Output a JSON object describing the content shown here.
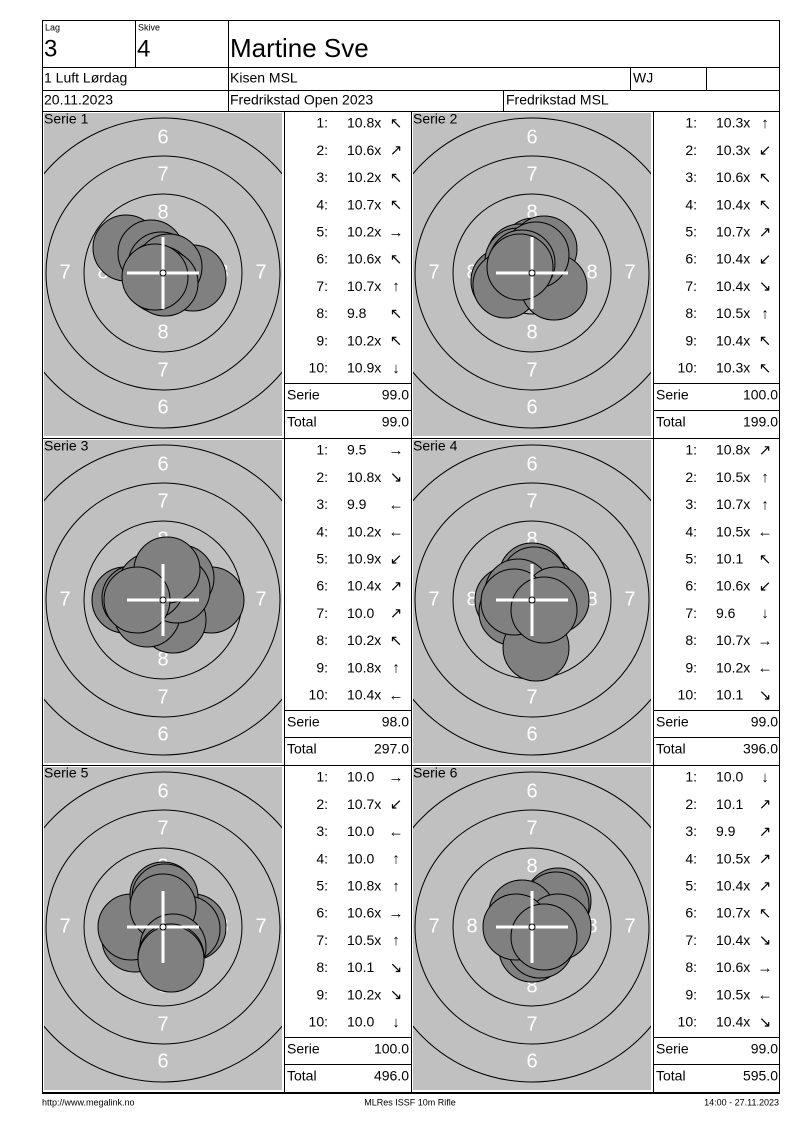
{
  "header": {
    "lag_label": "Lag",
    "lag": "3",
    "skive_label": "Skive",
    "skive": "4",
    "name": "Martine Sve",
    "event": "1 Luft Lørdag",
    "club": "Kisen MSL",
    "class": "WJ",
    "date": "20.11.2023",
    "competition": "Fredrikstad Open 2023",
    "organizer": "Fredrikstad MSL"
  },
  "target": {
    "ring_numbers": [
      "6",
      "7",
      "8"
    ]
  },
  "summary_labels": {
    "serie": "Serie",
    "total": "Total"
  },
  "series": [
    {
      "title": "Serie 1",
      "shots": [
        {
          "n": "1:",
          "score": "10.8x",
          "dir": "↖"
        },
        {
          "n": "2:",
          "score": "10.6x",
          "dir": "↗"
        },
        {
          "n": "3:",
          "score": "10.2x",
          "dir": "↖"
        },
        {
          "n": "4:",
          "score": "10.7x",
          "dir": "↖"
        },
        {
          "n": "5:",
          "score": "10.2x",
          "dir": "→"
        },
        {
          "n": "6:",
          "score": "10.6x",
          "dir": "↖"
        },
        {
          "n": "7:",
          "score": "10.7x",
          "dir": "↑"
        },
        {
          "n": "8:",
          "score": "9.8",
          "dir": "↖"
        },
        {
          "n": "9:",
          "score": "10.2x",
          "dir": "↖"
        },
        {
          "n": "10:",
          "score": "10.9x",
          "dir": "↓"
        }
      ],
      "serie": "99.0",
      "total": "99.0"
    },
    {
      "title": "Serie 2",
      "shots": [
        {
          "n": "1:",
          "score": "10.3x",
          "dir": "↑"
        },
        {
          "n": "2:",
          "score": "10.3x",
          "dir": "↙"
        },
        {
          "n": "3:",
          "score": "10.6x",
          "dir": "↖"
        },
        {
          "n": "4:",
          "score": "10.4x",
          "dir": "↖"
        },
        {
          "n": "5:",
          "score": "10.7x",
          "dir": "↗"
        },
        {
          "n": "6:",
          "score": "10.4x",
          "dir": "↙"
        },
        {
          "n": "7:",
          "score": "10.4x",
          "dir": "↘"
        },
        {
          "n": "8:",
          "score": "10.5x",
          "dir": "↑"
        },
        {
          "n": "9:",
          "score": "10.4x",
          "dir": "↖"
        },
        {
          "n": "10:",
          "score": "10.3x",
          "dir": "↖"
        }
      ],
      "serie": "100.0",
      "total": "199.0"
    },
    {
      "title": "Serie 3",
      "shots": [
        {
          "n": "1:",
          "score": "9.5",
          "dir": "→"
        },
        {
          "n": "2:",
          "score": "10.8x",
          "dir": "↘"
        },
        {
          "n": "3:",
          "score": "9.9",
          "dir": "←"
        },
        {
          "n": "4:",
          "score": "10.2x",
          "dir": "←"
        },
        {
          "n": "5:",
          "score": "10.9x",
          "dir": "↙"
        },
        {
          "n": "6:",
          "score": "10.4x",
          "dir": "↗"
        },
        {
          "n": "7:",
          "score": "10.0",
          "dir": "↗"
        },
        {
          "n": "8:",
          "score": "10.2x",
          "dir": "↖"
        },
        {
          "n": "9:",
          "score": "10.8x",
          "dir": "↑"
        },
        {
          "n": "10:",
          "score": "10.4x",
          "dir": "←"
        }
      ],
      "serie": "98.0",
      "total": "297.0"
    },
    {
      "title": "Serie 4",
      "shots": [
        {
          "n": "1:",
          "score": "10.8x",
          "dir": "↗"
        },
        {
          "n": "2:",
          "score": "10.5x",
          "dir": "↑"
        },
        {
          "n": "3:",
          "score": "10.7x",
          "dir": "↑"
        },
        {
          "n": "4:",
          "score": "10.5x",
          "dir": "←"
        },
        {
          "n": "5:",
          "score": "10.1",
          "dir": "↖"
        },
        {
          "n": "6:",
          "score": "10.6x",
          "dir": "↙"
        },
        {
          "n": "7:",
          "score": "9.6",
          "dir": "↓"
        },
        {
          "n": "8:",
          "score": "10.7x",
          "dir": "→"
        },
        {
          "n": "9:",
          "score": "10.2x",
          "dir": "←"
        },
        {
          "n": "10:",
          "score": "10.1",
          "dir": "↘"
        }
      ],
      "serie": "99.0",
      "total": "396.0"
    },
    {
      "title": "Serie 5",
      "shots": [
        {
          "n": "1:",
          "score": "10.0",
          "dir": "→"
        },
        {
          "n": "2:",
          "score": "10.7x",
          "dir": "↙"
        },
        {
          "n": "3:",
          "score": "10.0",
          "dir": "←"
        },
        {
          "n": "4:",
          "score": "10.0",
          "dir": "↑"
        },
        {
          "n": "5:",
          "score": "10.8x",
          "dir": "↑"
        },
        {
          "n": "6:",
          "score": "10.6x",
          "dir": "→"
        },
        {
          "n": "7:",
          "score": "10.5x",
          "dir": "↑"
        },
        {
          "n": "8:",
          "score": "10.1",
          "dir": "↘"
        },
        {
          "n": "9:",
          "score": "10.2x",
          "dir": "↘"
        },
        {
          "n": "10:",
          "score": "10.0",
          "dir": "↓"
        }
      ],
      "serie": "100.0",
      "total": "496.0"
    },
    {
      "title": "Serie 6",
      "shots": [
        {
          "n": "1:",
          "score": "10.0",
          "dir": "↓"
        },
        {
          "n": "2:",
          "score": "10.1",
          "dir": "↗"
        },
        {
          "n": "3:",
          "score": "9.9",
          "dir": "↗"
        },
        {
          "n": "4:",
          "score": "10.5x",
          "dir": "↗"
        },
        {
          "n": "5:",
          "score": "10.4x",
          "dir": "↗"
        },
        {
          "n": "6:",
          "score": "10.7x",
          "dir": "↖"
        },
        {
          "n": "7:",
          "score": "10.4x",
          "dir": "↘"
        },
        {
          "n": "8:",
          "score": "10.6x",
          "dir": "→"
        },
        {
          "n": "9:",
          "score": "10.5x",
          "dir": "←"
        },
        {
          "n": "10:",
          "score": "10.4x",
          "dir": "↘"
        }
      ],
      "serie": "99.0",
      "total": "595.0"
    }
  ],
  "footer": {
    "left": "http://www.megalink.no",
    "center": "MLRes ISSF 10m Rifle",
    "right": "14:00 - 27.11.2023"
  }
}
